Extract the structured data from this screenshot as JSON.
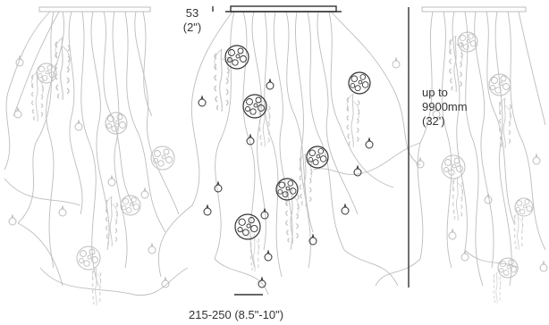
{
  "dimensions": {
    "canopy_depth": {
      "mm": "53",
      "in": "(2\")"
    },
    "drop_length": {
      "prefix": "up to",
      "mm": "9900mm",
      "ft": "(32')"
    },
    "module_spacing": {
      "text": "215-250 (8.5\"-10\")"
    }
  },
  "colors": {
    "ink_dark": "#333333",
    "ink_light": "#bdbdbd",
    "foliage": "#c8c8c8",
    "background": "#ffffff"
  },
  "icons": [
    "ceiling-canopy-icon",
    "hanging-glass-globe-icon",
    "small-glass-bulb-icon",
    "trailing-plant-icon"
  ]
}
